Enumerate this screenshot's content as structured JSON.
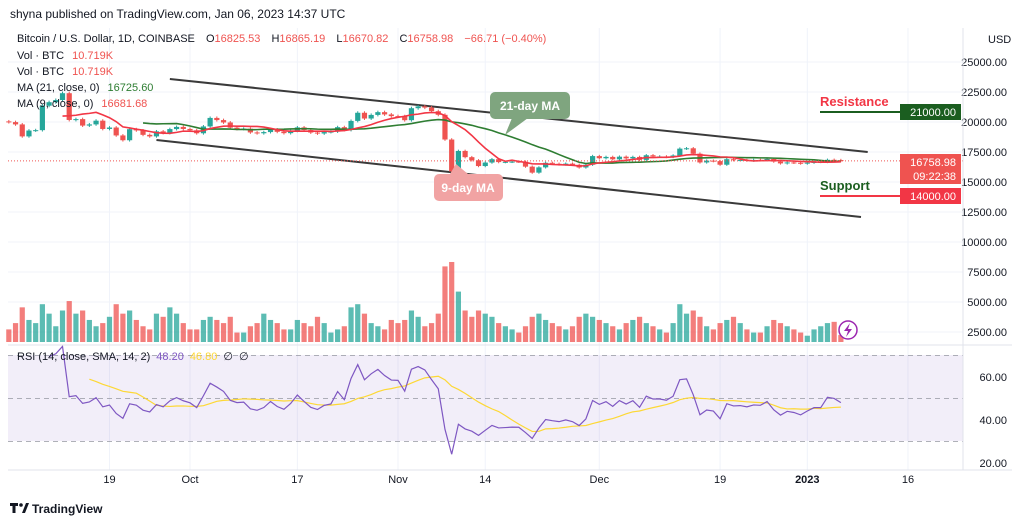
{
  "header": {
    "published": "shyna published on TradingView.com, Jan 06, 2023 14:37 UTC"
  },
  "legend": {
    "symbol": "Bitcoin / U.S. Dollar, 1D, COINBASE",
    "o_label": "O",
    "o": "16825.53",
    "h_label": "H",
    "h": "16865.19",
    "l_label": "L",
    "l": "16670.82",
    "c_label": "C",
    "c": "16758.98",
    "change": "−66.71 (−0.40%)",
    "vol1_label": "Vol · BTC",
    "vol1": "10.719K",
    "vol2_label": "Vol · BTC",
    "vol2": "10.719K",
    "ma21_label": "MA (21, close, 0)",
    "ma21": "16725.60",
    "ma9_label": "MA (9, close, 0)",
    "ma9": "16681.68",
    "rsi_label": "RSI (14, close, SMA, 14, 2)",
    "rsi": "48.20",
    "rsi_sma": "46.80",
    "rsi_extra1": "∅",
    "rsi_extra2": "∅"
  },
  "annotations": {
    "ma21_label": "21-day MA",
    "ma9_label": "9-day MA",
    "resistance_label": "Resistance",
    "support_label": "Support"
  },
  "axis": {
    "currency": "USD",
    "price_ticks": [
      "25000.00",
      "22500.00",
      "20000.00",
      "17500.00",
      "15000.00",
      "12500.00",
      "10000.00",
      "7500.00",
      "5000.00",
      "2500.00"
    ],
    "resistance_value": "21000.00",
    "support_value": "14000.00",
    "last_price": "16758.98",
    "countdown": "09:22:38",
    "rsi_ticks": [
      "60.00",
      "40.00",
      "20.00"
    ],
    "time_ticks": [
      {
        "label": "19",
        "date": "2022-09-19"
      },
      {
        "label": "Oct",
        "date": "2022-10-01"
      },
      {
        "label": "17",
        "date": "2022-10-17"
      },
      {
        "label": "Nov",
        "date": "2022-11-01"
      },
      {
        "label": "14",
        "date": "2022-11-14"
      },
      {
        "label": "Dec",
        "date": "2022-12-01"
      },
      {
        "label": "19",
        "date": "2022-12-19"
      },
      {
        "label": "2023",
        "date": "2023-01-01"
      },
      {
        "label": "16",
        "date": "2023-01-16"
      }
    ]
  },
  "footer": {
    "brand": "TradingView"
  },
  "colors": {
    "up": "#26a69a",
    "down": "#ef5350",
    "ma21": "#2e7d32",
    "ma9": "#f23645",
    "rsi": "#7e57c2",
    "rsi_sma": "#fdd835",
    "resistance_box": "#1b5e20",
    "support_box": "#f23645",
    "trendline": "#3a3a3a"
  },
  "chart_data": {
    "type": "candlestick",
    "start_date": "2022-09-04",
    "first_open": 20050,
    "closes": [
      19990,
      19800,
      18800,
      19290,
      19320,
      21360,
      21650,
      21830,
      22400,
      20170,
      20240,
      19700,
      19800,
      20110,
      19420,
      19540,
      18880,
      18480,
      19400,
      19300,
      18930,
      18800,
      19220,
      19080,
      19410,
      19590,
      19420,
      19310,
      19060,
      19630,
      20340,
      20160,
      19960,
      19530,
      19420,
      19440,
      19130,
      19060,
      19160,
      19380,
      19180,
      19070,
      19260,
      19550,
      19330,
      19120,
      19040,
      19160,
      19200,
      19570,
      19330,
      20090,
      20770,
      20290,
      20590,
      20820,
      20630,
      20490,
      20480,
      20150,
      21150,
      21300,
      21200,
      20900,
      20600,
      18540,
      15880,
      17590,
      17070,
      16810,
      16330,
      16620,
      16900,
      16660,
      16680,
      16700,
      16690,
      16280,
      15780,
      16220,
      16600,
      16520,
      16460,
      16530,
      16430,
      16210,
      16440,
      17160,
      16980,
      17090,
      16890,
      17110,
      16970,
      17090,
      16840,
      17230,
      17130,
      17130,
      17090,
      17210,
      17780,
      17810,
      17360,
      16630,
      16780,
      16740,
      16440,
      16900,
      16820,
      16830,
      16790,
      16840,
      16830,
      16920,
      16700,
      16550,
      16630,
      16600,
      16540,
      16610,
      16670,
      16670,
      16850,
      16830,
      16759
    ],
    "volumes_k_btc": [
      20,
      30,
      55,
      35,
      30,
      60,
      45,
      25,
      50,
      65,
      45,
      50,
      35,
      25,
      30,
      40,
      60,
      45,
      50,
      35,
      25,
      20,
      45,
      40,
      55,
      45,
      30,
      20,
      20,
      35,
      40,
      35,
      30,
      40,
      15,
      15,
      25,
      30,
      45,
      35,
      30,
      20,
      20,
      35,
      30,
      25,
      40,
      30,
      15,
      20,
      25,
      55,
      60,
      45,
      30,
      25,
      20,
      35,
      30,
      35,
      50,
      40,
      25,
      30,
      45,
      120,
      127,
      80,
      50,
      40,
      50,
      45,
      40,
      30,
      25,
      20,
      15,
      25,
      40,
      45,
      35,
      30,
      25,
      20,
      25,
      40,
      45,
      40,
      35,
      30,
      25,
      20,
      30,
      35,
      40,
      30,
      25,
      20,
      15,
      30,
      60,
      45,
      50,
      40,
      25,
      20,
      30,
      35,
      40,
      30,
      20,
      15,
      15,
      25,
      35,
      30,
      25,
      20,
      15,
      10,
      20,
      25,
      30,
      32,
      11
    ],
    "indicators": {
      "ma_periods": [
        21,
        9
      ],
      "rsi_period": 14,
      "rsi_sma_period": 14,
      "rsi_bands": [
        70,
        50,
        30
      ]
    },
    "trendlines": [
      {
        "from": {
          "date": "2022-09-28",
          "price": 23580
        },
        "to": {
          "date": "2023-01-10",
          "price": 17500
        }
      },
      {
        "from": {
          "date": "2022-09-26",
          "price": 18500
        },
        "to": {
          "date": "2023-01-09",
          "price": 12080
        }
      }
    ],
    "levels": {
      "resistance": 21000,
      "support": 14000
    },
    "price_range": [
      2000,
      26500
    ],
    "rsi_range": [
      20,
      70
    ],
    "grid": true
  }
}
